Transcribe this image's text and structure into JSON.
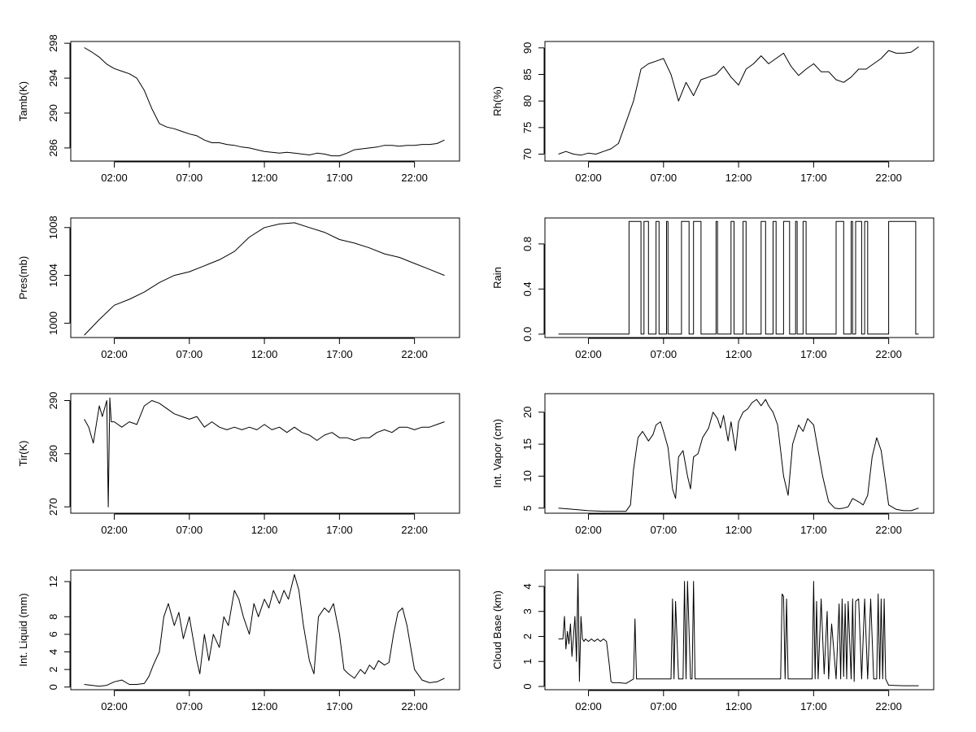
{
  "chart_data": [
    {
      "type": "line",
      "ylabel": "Tamb(K)",
      "xticks": [
        "02:00",
        "07:00",
        "12:00",
        "17:00",
        "22:00"
      ],
      "yticks": [
        286,
        290,
        294,
        298
      ],
      "ylim": [
        284.5,
        298.2
      ],
      "xlim": [
        -0.9,
        25.0
      ],
      "x": [
        0,
        0.5,
        1,
        1.5,
        2,
        2.5,
        3,
        3.5,
        4,
        4.5,
        5,
        5.5,
        6,
        6.5,
        7,
        7.5,
        8,
        8.5,
        9,
        9.5,
        10,
        10.5,
        11,
        11.5,
        12,
        12.5,
        13,
        13.5,
        14,
        14.5,
        15,
        15.5,
        16,
        16.5,
        17,
        17.5,
        18,
        18.5,
        19,
        19.5,
        20,
        20.5,
        21,
        21.5,
        22,
        22.5,
        23,
        23.5,
        24
      ],
      "values": [
        297.5,
        297.0,
        296.4,
        295.6,
        295.1,
        294.8,
        294.5,
        294.0,
        292.6,
        290.5,
        288.8,
        288.4,
        288.2,
        287.9,
        287.6,
        287.4,
        286.9,
        286.6,
        286.6,
        286.4,
        286.3,
        286.1,
        286.0,
        285.8,
        285.6,
        285.5,
        285.4,
        285.5,
        285.4,
        285.3,
        285.2,
        285.4,
        285.3,
        285.1,
        285.1,
        285.4,
        285.8,
        285.9,
        286.0,
        286.1,
        286.3,
        286.3,
        286.2,
        286.3,
        286.3,
        286.4,
        286.4,
        286.5,
        286.9
      ],
      "grid": false
    },
    {
      "type": "line",
      "ylabel": "Rh(%)",
      "xticks": [
        "02:00",
        "07:00",
        "12:00",
        "17:00",
        "22:00"
      ],
      "yticks": [
        70,
        75,
        80,
        85,
        90
      ],
      "ylim": [
        68.7,
        91.2
      ],
      "xlim": [
        -0.9,
        25.0
      ],
      "x": [
        0,
        0.5,
        1,
        1.5,
        2,
        2.5,
        3,
        3.5,
        4,
        4.5,
        5,
        5.5,
        6,
        6.5,
        7,
        7.5,
        8,
        8.5,
        9,
        9.5,
        10,
        10.5,
        11,
        11.5,
        12,
        12.5,
        13,
        13.5,
        14,
        14.5,
        15,
        15.5,
        16,
        16.5,
        17,
        17.5,
        18,
        18.5,
        19,
        19.5,
        20,
        20.5,
        21,
        21.5,
        22,
        22.5,
        23,
        23.5,
        24
      ],
      "values": [
        70.0,
        70.5,
        70.0,
        69.8,
        70.2,
        70.0,
        70.5,
        71.0,
        72.0,
        76.0,
        80.0,
        86.0,
        87.0,
        87.5,
        88.0,
        85.0,
        80.0,
        83.5,
        81.0,
        84.0,
        84.5,
        85.0,
        86.5,
        84.5,
        83.0,
        86.0,
        87.0,
        88.5,
        87.0,
        88.0,
        89.0,
        86.5,
        84.8,
        86.0,
        87.0,
        85.5,
        85.5,
        84.0,
        83.5,
        84.5,
        86.0,
        86.0,
        87.0,
        88.0,
        89.5,
        89.0,
        89.0,
        89.2,
        90.2
      ],
      "grid": false
    },
    {
      "type": "line",
      "ylabel": "Pres(mb)",
      "xticks": [
        "02:00",
        "07:00",
        "12:00",
        "17:00",
        "22:00"
      ],
      "yticks": [
        1000,
        1004,
        1008
      ],
      "ylim": [
        998.8,
        1008.8
      ],
      "xlim": [
        -0.9,
        25.0
      ],
      "x": [
        0,
        1,
        2,
        3,
        4,
        5,
        6,
        7,
        8,
        9,
        10,
        11,
        12,
        13,
        14,
        15,
        16,
        17,
        18,
        19,
        20,
        21,
        22,
        23,
        24
      ],
      "values": [
        999.0,
        1000.3,
        1001.5,
        1002.0,
        1002.6,
        1003.4,
        1004.0,
        1004.3,
        1004.8,
        1005.3,
        1006.0,
        1007.2,
        1008.0,
        1008.3,
        1008.4,
        1008.0,
        1007.6,
        1007.0,
        1006.7,
        1006.3,
        1005.8,
        1005.5,
        1005.0,
        1004.5,
        1004.0
      ],
      "grid": false
    },
    {
      "type": "line",
      "ylabel": "Rain",
      "xticks": [
        "02:00",
        "07:00",
        "12:00",
        "17:00",
        "22:00"
      ],
      "yticks": [
        "0.0",
        "0.4",
        "0.8"
      ],
      "ylim": [
        -0.03,
        1.03
      ],
      "xlim": [
        -0.9,
        25.0
      ],
      "x": [
        0,
        4.7,
        4.7,
        5.5,
        5.5,
        5.7,
        5.7,
        6.0,
        6.0,
        6.5,
        6.5,
        6.7,
        6.7,
        7.2,
        7.2,
        7.3,
        7.3,
        8.2,
        8.2,
        8.7,
        8.7,
        9.0,
        9.0,
        9.5,
        9.5,
        10.5,
        10.5,
        10.6,
        10.6,
        11.5,
        11.5,
        11.7,
        11.7,
        12.3,
        12.3,
        12.5,
        12.5,
        13.5,
        13.5,
        13.8,
        13.8,
        14.3,
        14.3,
        14.5,
        14.5,
        15.0,
        15.0,
        15.4,
        15.4,
        15.8,
        15.8,
        15.9,
        15.9,
        16.3,
        16.3,
        16.5,
        16.5,
        18.5,
        18.5,
        19.0,
        19.0,
        19.5,
        19.5,
        19.6,
        19.6,
        19.8,
        19.8,
        20.2,
        20.2,
        20.4,
        20.4,
        20.6,
        20.6,
        22.0,
        22.0,
        23.8,
        23.8,
        24.0
      ],
      "values": [
        0,
        0,
        1,
        1,
        0,
        0,
        1,
        1,
        0,
        0,
        1,
        1,
        0,
        0,
        1,
        1,
        0,
        0,
        1,
        1,
        0,
        0,
        1,
        1,
        0,
        0,
        1,
        1,
        0,
        0,
        1,
        1,
        0,
        0,
        1,
        1,
        0,
        0,
        1,
        1,
        0,
        0,
        1,
        1,
        0,
        0,
        1,
        1,
        0,
        0,
        1,
        1,
        0,
        0,
        1,
        1,
        0,
        0,
        1,
        1,
        0,
        0,
        1,
        1,
        0,
        0,
        1,
        1,
        0,
        0,
        1,
        1,
        0,
        0,
        1,
        1,
        0,
        0
      ],
      "grid": false
    },
    {
      "type": "line",
      "ylabel": "Tir(K)",
      "xticks": [
        "02:00",
        "07:00",
        "12:00",
        "17:00",
        "22:00"
      ],
      "yticks": [
        270,
        280,
        290
      ],
      "ylim": [
        268.8,
        291.3
      ],
      "xlim": [
        -0.9,
        25.0
      ],
      "x": [
        0,
        0.3,
        0.6,
        1.0,
        1.2,
        1.5,
        1.6,
        1.7,
        1.8,
        2.0,
        2.5,
        3.0,
        3.5,
        4.0,
        4.5,
        5.0,
        5.5,
        6.0,
        6.5,
        7.0,
        7.5,
        8.0,
        8.5,
        9.0,
        9.5,
        10.0,
        10.5,
        11.0,
        11.5,
        12.0,
        12.5,
        13.0,
        13.5,
        14.0,
        14.5,
        15.0,
        15.5,
        16.0,
        16.5,
        17.0,
        17.5,
        18.0,
        18.5,
        19.0,
        19.5,
        20.0,
        20.5,
        21.0,
        21.5,
        22.0,
        22.5,
        23.0,
        23.5,
        24.0
      ],
      "values": [
        286.5,
        285.0,
        282.0,
        289.0,
        287.0,
        290.0,
        270.0,
        290.5,
        286.0,
        286.0,
        285.0,
        286.0,
        285.5,
        289.0,
        290.0,
        289.5,
        288.5,
        287.5,
        287.0,
        286.5,
        287.0,
        285.0,
        286.0,
        285.0,
        284.5,
        285.0,
        284.5,
        285.0,
        284.5,
        285.5,
        284.5,
        285.0,
        284.0,
        285.0,
        284.0,
        283.5,
        282.5,
        283.5,
        284.0,
        283.0,
        283.0,
        282.5,
        283.0,
        283.0,
        284.0,
        284.5,
        284.0,
        285.0,
        285.0,
        284.5,
        285.0,
        285.0,
        285.5,
        286.0
      ],
      "grid": false
    },
    {
      "type": "line",
      "ylabel": "Int. Vapor (cm)",
      "xticks": [
        "02:00",
        "07:00",
        "12:00",
        "17:00",
        "22:00"
      ],
      "yticks": [
        5,
        10,
        15,
        20
      ],
      "ylim": [
        4.2,
        22.9
      ],
      "xlim": [
        -0.9,
        25.0
      ],
      "x": [
        0,
        1,
        2,
        3,
        4,
        4.5,
        4.8,
        5.0,
        5.3,
        5.6,
        6.0,
        6.3,
        6.5,
        6.8,
        7.0,
        7.3,
        7.6,
        7.8,
        8.0,
        8.3,
        8.6,
        8.8,
        9.0,
        9.3,
        9.6,
        10.0,
        10.3,
        10.6,
        10.8,
        11.0,
        11.3,
        11.5,
        11.8,
        12.0,
        12.3,
        12.6,
        12.9,
        13.2,
        13.5,
        13.8,
        14.0,
        14.3,
        14.6,
        14.8,
        15.0,
        15.3,
        15.6,
        16.0,
        16.3,
        16.6,
        17.0,
        17.3,
        17.6,
        18.0,
        18.4,
        18.7,
        19.0,
        19.3,
        19.6,
        20.0,
        20.3,
        20.6,
        20.9,
        21.2,
        21.5,
        21.8,
        22.0,
        22.5,
        23.0,
        23.5,
        24.0
      ],
      "values": [
        5.0,
        4.8,
        4.6,
        4.5,
        4.5,
        4.5,
        5.5,
        11.0,
        16.0,
        17.0,
        15.5,
        16.5,
        18.0,
        18.5,
        17.0,
        14.5,
        8.0,
        6.5,
        13.0,
        14.0,
        10.0,
        8.0,
        13.0,
        13.5,
        16.0,
        17.5,
        20.0,
        19.0,
        17.5,
        19.5,
        15.5,
        18.5,
        14.0,
        18.5,
        20.0,
        20.5,
        21.5,
        22.0,
        21.0,
        22.0,
        21.0,
        20.0,
        18.0,
        14.0,
        10.0,
        7.0,
        15.0,
        18.0,
        17.0,
        19.0,
        18.0,
        14.0,
        10.0,
        6.0,
        5.0,
        4.9,
        5.0,
        5.2,
        6.5,
        6.0,
        5.5,
        7.0,
        13.0,
        16.0,
        14.0,
        9.0,
        5.5,
        4.8,
        4.6,
        4.6,
        5.0
      ],
      "grid": false
    },
    {
      "type": "line",
      "ylabel": "Int. Liquid (mm)",
      "xticks": [
        "02:00",
        "07:00",
        "12:00",
        "17:00",
        "22:00"
      ],
      "yticks": [
        0,
        2,
        4,
        6,
        8,
        12
      ],
      "ylim": [
        -0.3,
        13.3
      ],
      "xlim": [
        -0.9,
        25.0
      ],
      "x": [
        0,
        0.5,
        1,
        1.5,
        2,
        2.5,
        3,
        3.5,
        4,
        4.3,
        4.6,
        5.0,
        5.3,
        5.6,
        6.0,
        6.3,
        6.6,
        7.0,
        7.3,
        7.5,
        7.7,
        8.0,
        8.3,
        8.6,
        9.0,
        9.3,
        9.6,
        10.0,
        10.3,
        10.6,
        11.0,
        11.3,
        11.6,
        12.0,
        12.3,
        12.6,
        13.0,
        13.3,
        13.6,
        14.0,
        14.3,
        14.6,
        15.0,
        15.3,
        15.6,
        16.0,
        16.3,
        16.6,
        17.0,
        17.3,
        17.6,
        18.0,
        18.4,
        18.7,
        19.0,
        19.3,
        19.6,
        20.0,
        20.3,
        20.6,
        20.9,
        21.2,
        21.5,
        21.8,
        22.0,
        22.5,
        23.0,
        23.5,
        24.0
      ],
      "values": [
        0.3,
        0.2,
        0.1,
        0.2,
        0.6,
        0.8,
        0.3,
        0.3,
        0.4,
        1.2,
        2.5,
        4.0,
        8.0,
        9.5,
        7.0,
        8.5,
        5.5,
        8.0,
        5.0,
        3.0,
        1.5,
        6.0,
        3.0,
        6.0,
        4.5,
        8.0,
        7.0,
        11.0,
        10.0,
        8.0,
        6.0,
        9.5,
        8.0,
        10.0,
        9.0,
        11.0,
        9.5,
        11.0,
        10.0,
        12.8,
        11.0,
        7.0,
        3.0,
        1.5,
        8.0,
        9.0,
        8.5,
        9.5,
        6.0,
        2.0,
        1.5,
        1.0,
        2.0,
        1.5,
        2.5,
        2.0,
        3.0,
        2.5,
        2.8,
        6.0,
        8.5,
        9.0,
        7.0,
        4.0,
        2.0,
        0.8,
        0.5,
        0.6,
        1.0
      ],
      "grid": false
    },
    {
      "type": "line",
      "ylabel": "Cloud Base (km)",
      "xticks": [
        "02:00",
        "07:00",
        "12:00",
        "17:00",
        "22:00"
      ],
      "yticks": [
        0,
        1,
        2,
        3,
        4
      ],
      "ylim": [
        -0.13,
        4.65
      ],
      "xlim": [
        -0.9,
        25.0
      ],
      "x": [
        0,
        0.3,
        0.4,
        0.5,
        0.6,
        0.7,
        0.8,
        0.9,
        1.0,
        1.1,
        1.2,
        1.3,
        1.4,
        1.5,
        1.6,
        1.7,
        1.8,
        2.0,
        2.2,
        2.4,
        2.6,
        2.8,
        3.0,
        3.2,
        3.4,
        3.5,
        3.6,
        4.0,
        4.5,
        5.0,
        5.1,
        5.2,
        5.3,
        5.4,
        5.5,
        6.0,
        7.0,
        7.5,
        7.6,
        7.7,
        7.8,
        8.0,
        8.2,
        8.3,
        8.4,
        8.5,
        8.6,
        8.8,
        8.9,
        9.0,
        9.1,
        9.2,
        10.0,
        11.0,
        12.0,
        13.0,
        14.0,
        14.5,
        14.8,
        14.9,
        15.0,
        15.1,
        15.2,
        15.3,
        16.0,
        16.5,
        16.9,
        17.0,
        17.1,
        17.2,
        17.3,
        17.5,
        17.7,
        17.9,
        18.0,
        18.2,
        18.5,
        18.7,
        18.8,
        18.9,
        19.0,
        19.1,
        19.2,
        19.3,
        19.5,
        19.6,
        19.7,
        19.8,
        20.0,
        20.2,
        20.4,
        20.6,
        20.8,
        21.0,
        21.2,
        21.3,
        21.4,
        21.5,
        21.6,
        21.7,
        21.8,
        22.0,
        23.0,
        24.0
      ],
      "values": [
        1.9,
        1.9,
        2.8,
        1.5,
        2.2,
        1.7,
        2.5,
        1.2,
        2.0,
        2.8,
        1.0,
        4.5,
        0.2,
        2.8,
        1.9,
        1.8,
        1.9,
        1.8,
        1.9,
        1.8,
        1.9,
        1.8,
        1.9,
        1.8,
        0.8,
        0.2,
        0.15,
        0.15,
        0.12,
        0.3,
        2.7,
        0.3,
        0.3,
        0.3,
        0.3,
        0.3,
        0.3,
        0.3,
        3.5,
        0.3,
        3.4,
        0.3,
        0.3,
        0.3,
        4.2,
        0.3,
        4.2,
        0.3,
        0.3,
        4.2,
        0.3,
        0.3,
        0.3,
        0.3,
        0.3,
        0.3,
        0.3,
        0.3,
        0.3,
        3.7,
        3.6,
        0.3,
        3.5,
        0.3,
        0.3,
        0.3,
        0.3,
        4.2,
        0.3,
        3.4,
        0.3,
        3.5,
        0.5,
        3.0,
        0.3,
        2.5,
        0.3,
        3.3,
        0.3,
        3.5,
        0.4,
        3.3,
        0.3,
        3.4,
        0.3,
        3.5,
        0.2,
        3.4,
        3.5,
        0.3,
        3.5,
        0.3,
        3.5,
        0.3,
        0.3,
        3.7,
        0.3,
        3.5,
        0.3,
        3.5,
        0.3,
        0.05,
        0.03,
        0.03
      ],
      "grid": false
    }
  ]
}
